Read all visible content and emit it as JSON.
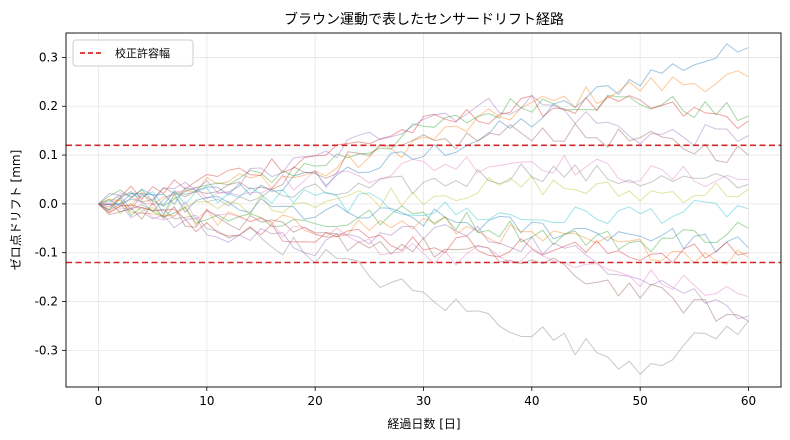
{
  "chart_data": {
    "type": "line",
    "title": "ブラウン運動で表したセンサードリフト経路",
    "xlabel": "経過日数 [日]",
    "ylabel": "ゼロ点ドリフト [mm]",
    "xlim": [
      -3,
      63
    ],
    "ylim": [
      -0.375,
      0.35
    ],
    "xticks": [
      0,
      10,
      20,
      30,
      40,
      50,
      60
    ],
    "yticks": [
      -0.3,
      -0.2,
      -0.1,
      0.0,
      0.1,
      0.2,
      0.3
    ],
    "xtick_labels": [
      "0",
      "10",
      "20",
      "30",
      "40",
      "50",
      "60"
    ],
    "ytick_labels": [
      "-0.3",
      "-0.2",
      "-0.1",
      "0.0",
      "0.1",
      "0.2",
      "0.3"
    ],
    "grid": true,
    "legend_position": "top-left",
    "legend": [
      {
        "label": "校正許容幅",
        "color": "#d62728",
        "style": "dashed"
      }
    ],
    "thresholds": [
      0.12,
      -0.12
    ],
    "threshold_color": "#d62728",
    "palette": [
      "#1f77b4",
      "#ff7f0e",
      "#2ca02c",
      "#d62728",
      "#9467bd",
      "#8c564b",
      "#e377c2",
      "#7f7f7f",
      "#bcbd22",
      "#17becf"
    ],
    "series_anchors": [
      {
        "x": [
          0,
          10,
          20,
          30,
          40,
          50,
          60
        ],
        "y": [
          0,
          0.02,
          0.05,
          0.1,
          0.17,
          0.26,
          0.32
        ]
      },
      {
        "x": [
          0,
          10,
          20,
          30,
          40,
          50,
          60
        ],
        "y": [
          0,
          0.04,
          0.06,
          0.13,
          0.2,
          0.24,
          0.26
        ]
      },
      {
        "x": [
          0,
          10,
          20,
          30,
          40,
          50,
          60
        ],
        "y": [
          0,
          0.03,
          0.08,
          0.15,
          0.21,
          0.21,
          0.18
        ]
      },
      {
        "x": [
          0,
          10,
          20,
          30,
          40,
          50,
          60
        ],
        "y": [
          0,
          0.05,
          0.1,
          0.16,
          0.2,
          0.2,
          0.17
        ]
      },
      {
        "x": [
          0,
          10,
          20,
          30,
          40,
          50,
          60
        ],
        "y": [
          0,
          0.03,
          0.09,
          0.18,
          0.21,
          0.14,
          0.14
        ]
      },
      {
        "x": [
          0,
          10,
          20,
          30,
          40,
          50,
          60
        ],
        "y": [
          0,
          0.02,
          0.07,
          0.12,
          0.15,
          0.13,
          0.1
        ]
      },
      {
        "x": [
          0,
          10,
          20,
          30,
          40,
          50,
          60
        ],
        "y": [
          0,
          0.03,
          0.05,
          0.08,
          0.09,
          0.06,
          0.05
        ]
      },
      {
        "x": [
          0,
          10,
          20,
          30,
          40,
          50,
          60
        ],
        "y": [
          0,
          0.01,
          0.02,
          0.04,
          0.07,
          0.05,
          0.04
        ]
      },
      {
        "x": [
          0,
          10,
          20,
          30,
          40,
          50,
          60
        ],
        "y": [
          0,
          -0.01,
          0.01,
          0.02,
          0.04,
          0.02,
          0.03
        ]
      },
      {
        "x": [
          0,
          10,
          20,
          30,
          40,
          50,
          60
        ],
        "y": [
          0,
          0.02,
          0.01,
          -0.01,
          -0.03,
          -0.02,
          -0.01
        ]
      },
      {
        "x": [
          0,
          10,
          20,
          30,
          40,
          50,
          60
        ],
        "y": [
          0,
          0.0,
          -0.02,
          -0.03,
          -0.05,
          -0.06,
          -0.09
        ]
      },
      {
        "x": [
          0,
          10,
          20,
          30,
          40,
          50,
          60
        ],
        "y": [
          0,
          -0.03,
          -0.05,
          -0.04,
          -0.07,
          -0.09,
          -0.11
        ]
      },
      {
        "x": [
          0,
          10,
          20,
          30,
          40,
          50,
          60
        ],
        "y": [
          0,
          -0.02,
          -0.04,
          -0.02,
          -0.06,
          -0.08,
          -0.05
        ]
      },
      {
        "x": [
          0,
          10,
          20,
          30,
          40,
          50,
          60
        ],
        "y": [
          0,
          -0.04,
          -0.06,
          -0.08,
          -0.09,
          -0.1,
          -0.1
        ]
      },
      {
        "x": [
          0,
          10,
          20,
          30,
          40,
          50,
          60
        ],
        "y": [
          0,
          -0.05,
          -0.09,
          -0.05,
          -0.08,
          -0.14,
          -0.23
        ]
      },
      {
        "x": [
          0,
          10,
          20,
          30,
          40,
          50,
          60
        ],
        "y": [
          0,
          -0.03,
          -0.07,
          -0.09,
          -0.12,
          -0.18,
          -0.24
        ]
      },
      {
        "x": [
          0,
          10,
          20,
          30,
          40,
          50,
          60
        ],
        "y": [
          0,
          -0.02,
          -0.06,
          -0.1,
          -0.11,
          -0.15,
          -0.19
        ]
      },
      {
        "x": [
          0,
          10,
          20,
          30,
          40,
          50,
          60
        ],
        "y": [
          0,
          -0.04,
          -0.1,
          -0.19,
          -0.26,
          -0.33,
          -0.24
        ]
      }
    ]
  }
}
